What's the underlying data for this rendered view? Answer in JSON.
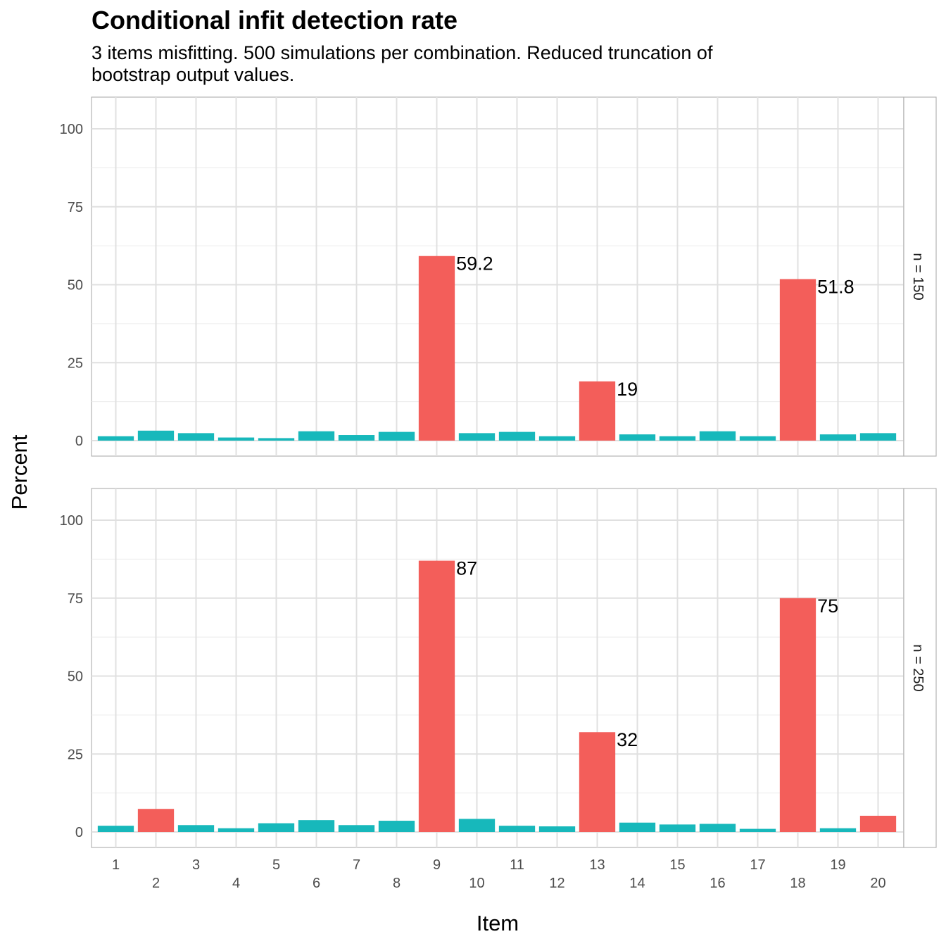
{
  "chart_data": {
    "type": "bar",
    "title": "Conditional infit detection rate",
    "subtitle": "3 items misfitting. 500 simulations per combination. Reduced truncation of bootstrap output values.",
    "xlabel": "Item",
    "ylabel": "Percent",
    "ylim": [
      0,
      110
    ],
    "yticks": [
      0,
      25,
      50,
      75,
      100
    ],
    "grid": true,
    "categories": [
      "1",
      "2",
      "3",
      "4",
      "5",
      "6",
      "7",
      "8",
      "9",
      "10",
      "11",
      "12",
      "13",
      "14",
      "15",
      "16",
      "17",
      "18",
      "19",
      "20"
    ],
    "misfit_color": "#F35E5A",
    "fit_color": "#17B8BB",
    "panels": [
      {
        "strip": "n = 150",
        "values": [
          1.4,
          3.2,
          2.4,
          1.0,
          0.8,
          3.0,
          1.8,
          2.8,
          59.2,
          2.4,
          2.8,
          1.4,
          19,
          2.0,
          1.4,
          3.0,
          1.4,
          51.8,
          2.0,
          2.4
        ],
        "flagged": [
          false,
          false,
          false,
          false,
          false,
          false,
          false,
          false,
          true,
          false,
          false,
          false,
          true,
          false,
          false,
          false,
          false,
          true,
          false,
          false
        ],
        "labels": [
          "",
          "",
          "",
          "",
          "",
          "",
          "",
          "",
          "59.2",
          "",
          "",
          "",
          "19",
          "",
          "",
          "",
          "",
          "51.8",
          "",
          ""
        ]
      },
      {
        "strip": "n = 250",
        "values": [
          2.0,
          7.4,
          2.2,
          1.2,
          2.8,
          3.8,
          2.2,
          3.6,
          87,
          4.2,
          2.0,
          1.8,
          32,
          3.0,
          2.4,
          2.6,
          1.0,
          75,
          1.2,
          5.2
        ],
        "flagged": [
          false,
          true,
          false,
          false,
          false,
          false,
          false,
          false,
          true,
          false,
          false,
          false,
          true,
          false,
          false,
          false,
          false,
          true,
          false,
          true
        ],
        "labels": [
          "",
          "",
          "",
          "",
          "",
          "",
          "",
          "",
          "87",
          "",
          "",
          "",
          "32",
          "",
          "",
          "",
          "",
          "75",
          "",
          ""
        ]
      }
    ]
  }
}
